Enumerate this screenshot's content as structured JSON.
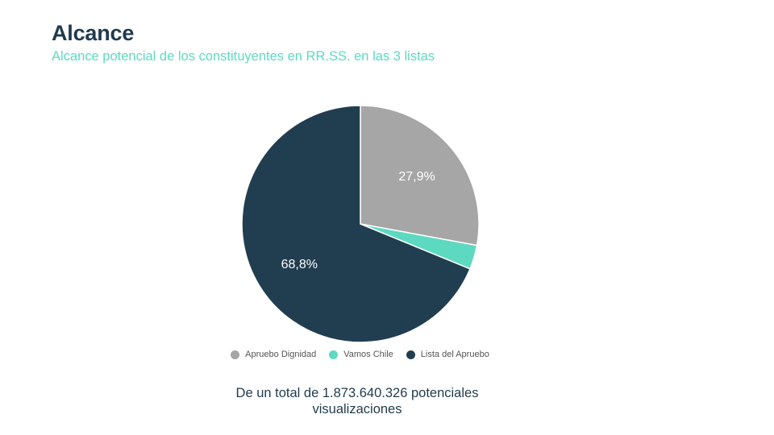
{
  "header": {
    "title": "Alcance",
    "subtitle": "Alcance potencial de los constituyentes en RR.SS. en las 3 listas"
  },
  "chart_data": {
    "type": "pie",
    "title": "",
    "slices": [
      {
        "name": "Apruebo Dignidad",
        "value": 27.9,
        "label": "27,9%",
        "color": "#a6a6a6"
      },
      {
        "name": "Vamos Chile",
        "value": 3.3,
        "label": "",
        "color": "#5dd9c1"
      },
      {
        "name": "Lista del Apruebo",
        "value": 68.8,
        "label": "68,8%",
        "color": "#213e50"
      }
    ],
    "start_angle_deg": 0,
    "direction": "clockwise",
    "legend_position": "bottom"
  },
  "footer": {
    "note_line1": "De un total de 1.873.640.326 potenciales",
    "note_line2": "visualizaciones"
  }
}
